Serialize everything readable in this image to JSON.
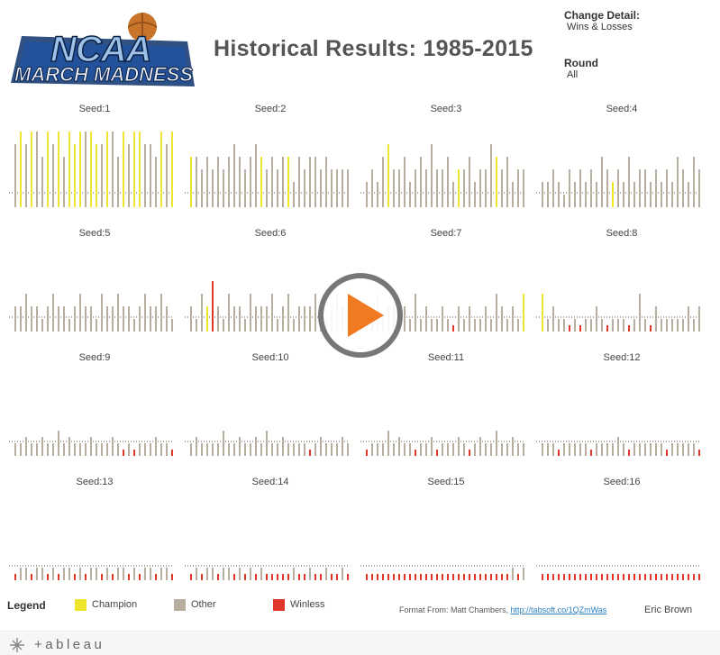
{
  "header": {
    "title": "Historical Results: 1985-2015",
    "logo_line1": "NCAA",
    "logo_line2": "MARCH MADNESS"
  },
  "filters": {
    "change_detail_label": "Change Detail:",
    "change_detail_value": "Wins & Losses",
    "round_label": "Round",
    "round_value": "All"
  },
  "colors": {
    "champion": "#ede62c",
    "other": "#b8aea0",
    "winless": "#e0372a",
    "play": "#f07a22"
  },
  "legend": {
    "title": "Legend",
    "items": [
      {
        "label": "Champion",
        "color": "#ede62c"
      },
      {
        "label": "Other",
        "color": "#b8aea0"
      },
      {
        "label": "Winless",
        "color": "#e0372a"
      }
    ]
  },
  "credit": {
    "prefix": "Format From: Matt Chambers,",
    "link": "http://tabsoft.co/1QZmWas"
  },
  "author": "Eric Brown",
  "footer": {
    "brand": "+ableau"
  },
  "overlay": {
    "play_icon": "play-icon"
  },
  "chart_data": {
    "type": "bar",
    "description_units": "bar height = tournament games (wins & losses); one bar per team-season",
    "panels": [
      {
        "title": "Seed:1",
        "values": [
          5,
          6,
          5,
          6,
          6,
          4,
          6,
          5,
          6,
          4,
          6,
          5,
          6,
          6,
          6,
          5,
          5,
          6,
          6,
          4,
          6,
          5,
          6,
          6,
          5,
          5,
          4,
          6,
          5,
          6
        ],
        "status": [
          "o",
          "c",
          "o",
          "c",
          "o",
          "o",
          "c",
          "o",
          "c",
          "o",
          "c",
          "c",
          "c",
          "o",
          "c",
          "c",
          "o",
          "c",
          "o",
          "o",
          "c",
          "o",
          "c",
          "c",
          "o",
          "o",
          "o",
          "c",
          "o",
          "c"
        ]
      },
      {
        "title": "Seed:2",
        "values": [
          4,
          4,
          3,
          4,
          3,
          4,
          3,
          4,
          5,
          4,
          3,
          4,
          5,
          4,
          3,
          4,
          3,
          4,
          4,
          2,
          4,
          3,
          4,
          4,
          3,
          4,
          3,
          3,
          3,
          3
        ],
        "status": [
          "c",
          "o",
          "o",
          "o",
          "o",
          "o",
          "o",
          "o",
          "o",
          "o",
          "o",
          "o",
          "o",
          "c",
          "o",
          "o",
          "o",
          "o",
          "c",
          "o",
          "o",
          "o",
          "o",
          "o",
          "o",
          "o",
          "o",
          "o",
          "o",
          "o"
        ]
      },
      {
        "title": "Seed:3",
        "values": [
          2,
          3,
          2,
          4,
          5,
          3,
          3,
          4,
          2,
          3,
          4,
          3,
          5,
          3,
          3,
          4,
          2,
          3,
          3,
          4,
          2,
          3,
          3,
          5,
          4,
          3,
          4,
          2,
          3,
          3
        ],
        "status": [
          "o",
          "o",
          "o",
          "o",
          "c",
          "o",
          "o",
          "o",
          "o",
          "o",
          "o",
          "o",
          "o",
          "o",
          "o",
          "o",
          "o",
          "c",
          "o",
          "o",
          "o",
          "o",
          "o",
          "o",
          "c",
          "o",
          "o",
          "o",
          "o",
          "o"
        ]
      },
      {
        "title": "Seed:4",
        "values": [
          2,
          2,
          3,
          2,
          1,
          3,
          2,
          3,
          2,
          3,
          2,
          4,
          3,
          2,
          3,
          2,
          4,
          2,
          3,
          3,
          2,
          3,
          2,
          3,
          2,
          4,
          3,
          2,
          4,
          3
        ],
        "status": [
          "o",
          "o",
          "o",
          "o",
          "o",
          "o",
          "o",
          "o",
          "o",
          "o",
          "o",
          "o",
          "o",
          "c",
          "o",
          "o",
          "o",
          "o",
          "o",
          "o",
          "o",
          "o",
          "o",
          "o",
          "o",
          "o",
          "o",
          "o",
          "o",
          "o"
        ]
      },
      {
        "title": "Seed:5",
        "values": [
          2,
          2,
          3,
          2,
          2,
          1,
          2,
          3,
          2,
          2,
          1,
          2,
          3,
          2,
          2,
          1,
          3,
          2,
          2,
          3,
          2,
          2,
          1,
          2,
          3,
          2,
          2,
          3,
          2,
          1
        ],
        "status": [
          "o",
          "o",
          "o",
          "o",
          "o",
          "o",
          "o",
          "o",
          "o",
          "o",
          "o",
          "o",
          "o",
          "o",
          "o",
          "o",
          "o",
          "o",
          "o",
          "o",
          "o",
          "o",
          "o",
          "o",
          "o",
          "o",
          "o",
          "o",
          "o",
          "o"
        ]
      },
      {
        "title": "Seed:6",
        "values": [
          2,
          1,
          3,
          2,
          4,
          2,
          1,
          3,
          2,
          2,
          1,
          3,
          2,
          2,
          2,
          3,
          1,
          2,
          3,
          1,
          2,
          2,
          2,
          3,
          2,
          1,
          2,
          3,
          2,
          2
        ],
        "status": [
          "o",
          "o",
          "o",
          "c",
          "w",
          "o",
          "o",
          "o",
          "o",
          "o",
          "o",
          "o",
          "o",
          "o",
          "o",
          "o",
          "o",
          "o",
          "o",
          "o",
          "o",
          "o",
          "o",
          "o",
          "o",
          "o",
          "o",
          "o",
          "o",
          "o"
        ]
      },
      {
        "title": "Seed:7",
        "values": [
          2,
          1,
          3,
          1,
          2,
          2,
          1,
          2,
          1,
          3,
          1,
          2,
          1,
          1,
          2,
          1,
          0.5,
          2,
          1,
          2,
          1,
          1,
          2,
          1,
          3,
          2,
          1,
          2,
          1,
          3
        ],
        "status": [
          "o",
          "o",
          "o",
          "o",
          "o",
          "o",
          "o",
          "o",
          "o",
          "o",
          "o",
          "o",
          "o",
          "o",
          "o",
          "o",
          "w",
          "o",
          "o",
          "o",
          "o",
          "o",
          "o",
          "o",
          "o",
          "o",
          "o",
          "o",
          "o",
          "c"
        ]
      },
      {
        "title": "Seed:8",
        "values": [
          3,
          1,
          2,
          1,
          1,
          0.5,
          1,
          0.5,
          1,
          1,
          2,
          1,
          0.5,
          1,
          1,
          1,
          0.5,
          1,
          3,
          1,
          0.5,
          2,
          1,
          1,
          1,
          1,
          1,
          2,
          1,
          2
        ],
        "status": [
          "c",
          "o",
          "o",
          "o",
          "o",
          "w",
          "o",
          "w",
          "o",
          "o",
          "o",
          "o",
          "w",
          "o",
          "o",
          "o",
          "w",
          "o",
          "o",
          "o",
          "w",
          "o",
          "o",
          "o",
          "o",
          "o",
          "o",
          "o",
          "o",
          "o"
        ]
      },
      {
        "title": "Seed:9",
        "values": [
          1,
          1,
          1.5,
          1,
          1,
          1.5,
          1,
          1,
          2,
          1,
          1.5,
          1,
          1,
          1,
          1.5,
          1,
          1,
          1,
          1.5,
          1,
          0.5,
          1,
          0.5,
          1,
          1,
          1,
          1.5,
          1,
          1,
          0.5
        ],
        "status": [
          "o",
          "o",
          "o",
          "o",
          "o",
          "o",
          "o",
          "o",
          "o",
          "o",
          "o",
          "o",
          "o",
          "o",
          "o",
          "o",
          "o",
          "o",
          "o",
          "o",
          "w",
          "o",
          "w",
          "o",
          "o",
          "o",
          "o",
          "o",
          "o",
          "w"
        ]
      },
      {
        "title": "Seed:10",
        "values": [
          1,
          1.5,
          1,
          1,
          1,
          1,
          2,
          1,
          1,
          1.5,
          1,
          1,
          1.5,
          1,
          2,
          1,
          1,
          1.5,
          1,
          1,
          1,
          1,
          0.5,
          1,
          1.5,
          1,
          1,
          1,
          1.5,
          1
        ],
        "status": [
          "o",
          "o",
          "o",
          "o",
          "o",
          "o",
          "o",
          "o",
          "o",
          "o",
          "o",
          "o",
          "o",
          "o",
          "o",
          "o",
          "o",
          "o",
          "o",
          "o",
          "o",
          "o",
          "w",
          "o",
          "o",
          "o",
          "o",
          "o",
          "o",
          "o"
        ]
      },
      {
        "title": "Seed:11",
        "values": [
          0.5,
          1,
          1,
          1,
          2,
          1,
          1.5,
          1,
          1,
          0.5,
          1,
          1,
          1.5,
          0.5,
          1,
          1,
          1,
          1.5,
          1,
          0.5,
          1,
          1.5,
          1,
          1,
          2,
          1,
          1,
          1.5,
          1,
          1
        ],
        "status": [
          "w",
          "o",
          "o",
          "o",
          "o",
          "o",
          "o",
          "o",
          "o",
          "w",
          "o",
          "o",
          "o",
          "w",
          "o",
          "o",
          "o",
          "o",
          "o",
          "w",
          "o",
          "o",
          "o",
          "o",
          "o",
          "o",
          "o",
          "o",
          "o",
          "o"
        ]
      },
      {
        "title": "Seed:12",
        "values": [
          1,
          1,
          1,
          0.5,
          1,
          1,
          1,
          1,
          1,
          0.5,
          1,
          1,
          1,
          1,
          1.5,
          1,
          0.5,
          1,
          1,
          1,
          1,
          1,
          1,
          0.5,
          1,
          1,
          1,
          1,
          1,
          0.5
        ],
        "status": [
          "o",
          "o",
          "o",
          "w",
          "o",
          "o",
          "o",
          "o",
          "o",
          "w",
          "o",
          "o",
          "o",
          "o",
          "o",
          "o",
          "w",
          "o",
          "o",
          "o",
          "o",
          "o",
          "o",
          "w",
          "o",
          "o",
          "o",
          "o",
          "o",
          "w"
        ]
      },
      {
        "title": "Seed:13",
        "values": [
          0.5,
          1,
          1,
          0.5,
          1,
          1,
          0.5,
          1,
          0.5,
          1,
          1,
          0.5,
          1,
          0.5,
          1,
          1,
          0.5,
          1,
          0.5,
          1,
          1,
          0.5,
          1,
          0.5,
          1,
          1,
          0.5,
          1,
          1,
          0.5
        ],
        "status": [
          "w",
          "o",
          "o",
          "w",
          "o",
          "o",
          "w",
          "o",
          "w",
          "o",
          "o",
          "w",
          "o",
          "w",
          "o",
          "o",
          "w",
          "o",
          "w",
          "o",
          "o",
          "w",
          "o",
          "w",
          "o",
          "o",
          "w",
          "o",
          "o",
          "w"
        ]
      },
      {
        "title": "Seed:14",
        "values": [
          0.5,
          1,
          0.5,
          1,
          1,
          0.5,
          1,
          1,
          0.5,
          1,
          0.5,
          1,
          0.5,
          1,
          0.5,
          0.5,
          0.5,
          0.5,
          0.5,
          1,
          0.5,
          0.5,
          1,
          0.5,
          0.5,
          1,
          0.5,
          0.5,
          1,
          0.5
        ],
        "status": [
          "w",
          "o",
          "w",
          "o",
          "o",
          "w",
          "o",
          "o",
          "w",
          "o",
          "w",
          "o",
          "w",
          "o",
          "w",
          "w",
          "w",
          "w",
          "w",
          "o",
          "w",
          "w",
          "o",
          "w",
          "w",
          "o",
          "w",
          "w",
          "o",
          "w"
        ]
      },
      {
        "title": "Seed:15",
        "values": [
          0.5,
          0.5,
          0.5,
          0.5,
          0.5,
          0.5,
          0.5,
          0.5,
          0.5,
          0.5,
          0.5,
          0.5,
          0.5,
          0.5,
          0.5,
          0.5,
          0.5,
          0.5,
          0.5,
          0.5,
          0.5,
          0.5,
          0.5,
          0.5,
          0.5,
          0.5,
          0.5,
          1,
          0.5,
          1
        ],
        "status": [
          "w",
          "w",
          "w",
          "w",
          "w",
          "w",
          "w",
          "w",
          "w",
          "w",
          "w",
          "w",
          "w",
          "w",
          "w",
          "w",
          "w",
          "w",
          "w",
          "w",
          "w",
          "w",
          "w",
          "w",
          "w",
          "w",
          "w",
          "o",
          "w",
          "o"
        ]
      },
      {
        "title": "Seed:16",
        "values": [
          0.5,
          0.5,
          0.5,
          0.5,
          0.5,
          0.5,
          0.5,
          0.5,
          0.5,
          0.5,
          0.5,
          0.5,
          0.5,
          0.5,
          0.5,
          0.5,
          0.5,
          0.5,
          0.5,
          0.5,
          0.5,
          0.5,
          0.5,
          0.5,
          0.5,
          0.5,
          0.5,
          0.5,
          0.5,
          0.5
        ],
        "status": [
          "w",
          "w",
          "w",
          "w",
          "w",
          "w",
          "w",
          "w",
          "w",
          "w",
          "w",
          "w",
          "w",
          "w",
          "w",
          "w",
          "w",
          "w",
          "w",
          "w",
          "w",
          "w",
          "w",
          "w",
          "w",
          "w",
          "w",
          "w",
          "w",
          "w"
        ]
      }
    ],
    "legend": [
      "Champion",
      "Other",
      "Winless"
    ],
    "grid": false
  }
}
